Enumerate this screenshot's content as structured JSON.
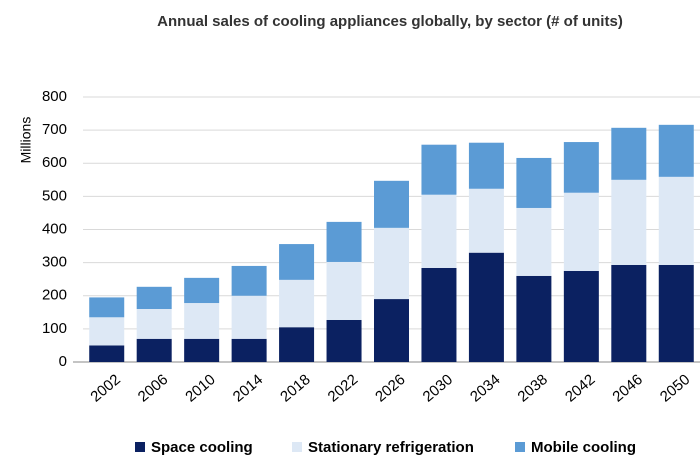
{
  "chart_data": {
    "type": "stacked_bar",
    "title": "Annual sales of cooling appliances globally, by sector (# of units)",
    "y_label": "Millions",
    "categories": [
      "2002",
      "2006",
      "2010",
      "2014",
      "2018",
      "2022",
      "2026",
      "2030",
      "2034",
      "2038",
      "2042",
      "2046",
      "2050"
    ],
    "series": [
      {
        "name": "Space cooling",
        "color": "#0b2161",
        "values": [
          50,
          70,
          70,
          70,
          105,
          127,
          190,
          284,
          330,
          260,
          275,
          293,
          293
        ]
      },
      {
        "name": "Stationary refrigeration",
        "color": "#dde8f5",
        "values": [
          85,
          90,
          108,
          130,
          143,
          175,
          215,
          221,
          193,
          205,
          236,
          257,
          266
        ]
      },
      {
        "name": "Mobile cooling",
        "color": "#5b9bd5",
        "values": [
          60,
          67,
          76,
          90,
          108,
          121,
          142,
          151,
          139,
          151,
          153,
          157,
          157
        ]
      }
    ],
    "ylim": [
      0,
      800
    ],
    "yticks": [
      0,
      100,
      200,
      300,
      400,
      500,
      600,
      700,
      800
    ],
    "grid": true,
    "legend": "bottom"
  }
}
